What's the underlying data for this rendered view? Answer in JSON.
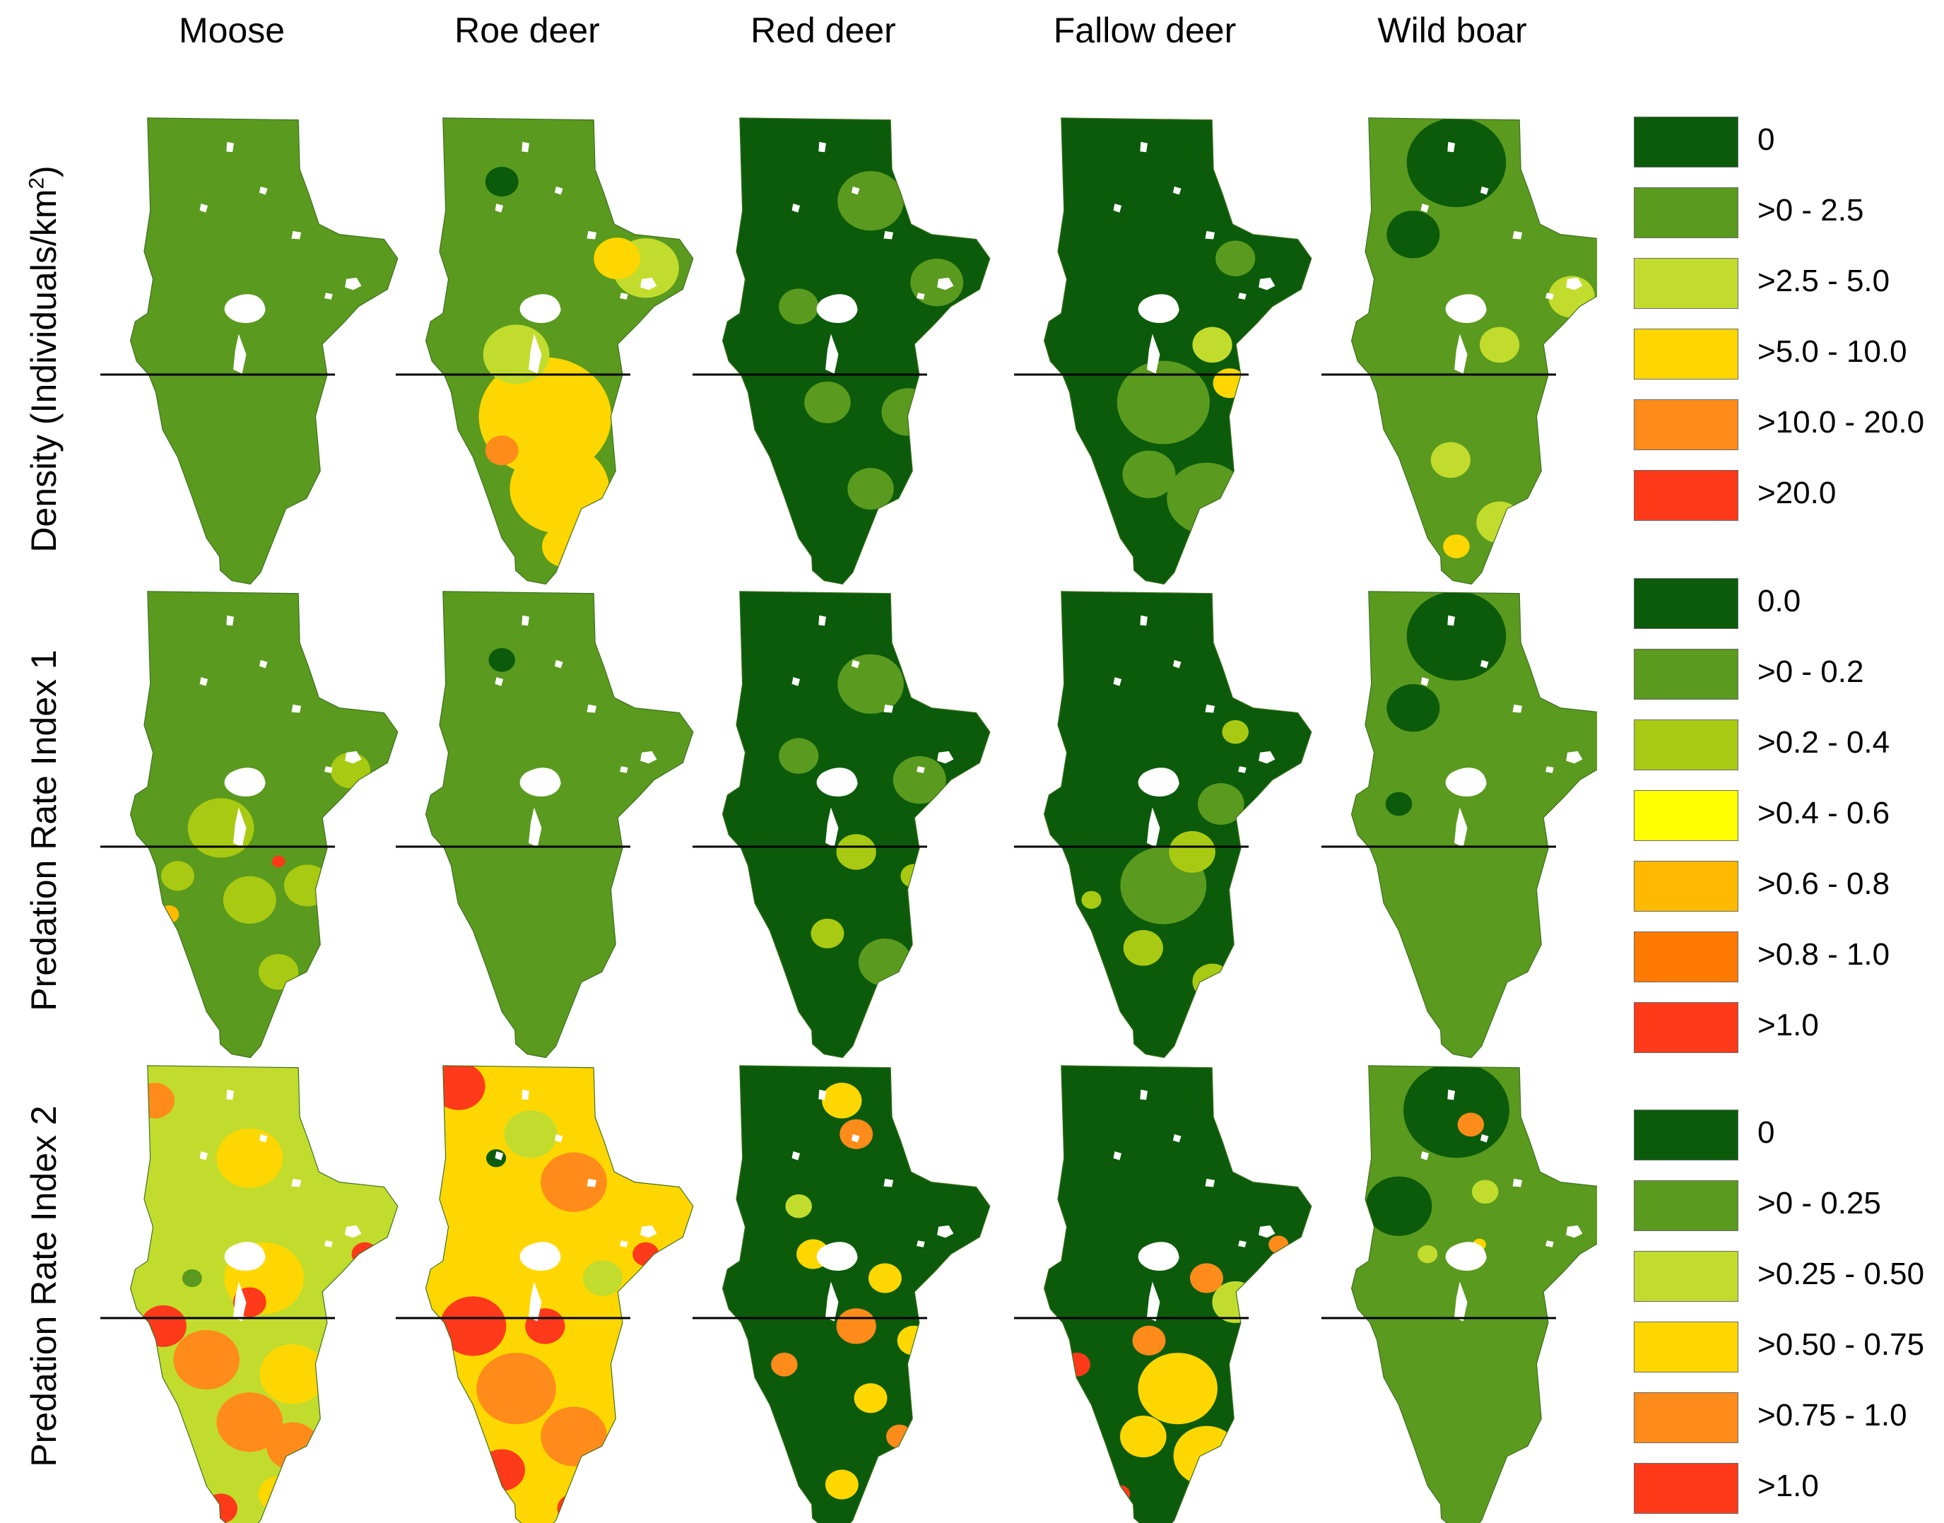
{
  "columns": [
    "Moose",
    "Roe deer",
    "Red deer",
    "Fallow deer",
    "Wild boar"
  ],
  "rows": [
    {
      "label_main": "Density (Individuals/km",
      "label_sup": "2",
      "label_tail": ")"
    },
    {
      "label_main": "Predation Rate Index 1",
      "label_sup": "",
      "label_tail": ""
    },
    {
      "label_main": "Predation Rate Index 2",
      "label_sup": "",
      "label_tail": ""
    }
  ],
  "colors": {
    "dark_green": "#0b5b0b",
    "mid_green": "#5a9a1e",
    "light_green": "#c2dc2e",
    "yellow_green": "#a9ca12",
    "yellow": "#ffd700",
    "bright_yellow": "#ffff00",
    "light_orange": "#ffba00",
    "orange": "#ff8c1a",
    "dark_orange": "#ff7a00",
    "red": "#ff3a1a"
  },
  "legends": [
    {
      "name": "density",
      "items": [
        {
          "label": "0",
          "color": "#0b5b0b"
        },
        {
          "label": ">0 - 2.5",
          "color": "#5a9a1e"
        },
        {
          "label": ">2.5 - 5.0",
          "color": "#c2dc2e"
        },
        {
          "label": ">5.0 - 10.0",
          "color": "#ffd700"
        },
        {
          "label": ">10.0 - 20.0",
          "color": "#ff8c1a"
        },
        {
          "label": ">20.0",
          "color": "#ff3a1a"
        }
      ]
    },
    {
      "name": "predation-index-1",
      "items": [
        {
          "label": "0.0",
          "color": "#0b5b0b"
        },
        {
          "label": ">0 - 0.2",
          "color": "#5a9a1e"
        },
        {
          "label": ">0.2 - 0.4",
          "color": "#a9ca12"
        },
        {
          "label": ">0.4 - 0.6",
          "color": "#ffff00"
        },
        {
          "label": ">0.6 - 0.8",
          "color": "#ffba00"
        },
        {
          "label": ">0.8 - 1.0",
          "color": "#ff7a00"
        },
        {
          "label": ">1.0",
          "color": "#ff3a1a"
        }
      ]
    },
    {
      "name": "predation-index-2",
      "items": [
        {
          "label": "0",
          "color": "#0b5b0b"
        },
        {
          "label": ">0 - 0.25",
          "color": "#5a9a1e"
        },
        {
          "label": ">0.25 - 0.50",
          "color": "#c2dc2e"
        },
        {
          "label": ">0.50 - 0.75",
          "color": "#ffd700"
        },
        {
          "label": ">0.75 - 1.0",
          "color": "#ff8c1a"
        },
        {
          "label": ">1.0",
          "color": "#ff3a1a"
        }
      ]
    }
  ],
  "maps": [
    [
      {
        "base": "mid_green",
        "blobs": [
          [
            "dark_green",
            0.72,
            0.95,
            0.04
          ]
        ]
      },
      {
        "base": "mid_green",
        "blobs": [
          [
            "yellow",
            0.45,
            0.63,
            0.2
          ],
          [
            "yellow",
            0.5,
            0.78,
            0.15
          ],
          [
            "light_green",
            0.35,
            0.5,
            0.1
          ],
          [
            "light_green",
            0.8,
            0.32,
            0.1
          ],
          [
            "yellow",
            0.7,
            0.3,
            0.07
          ],
          [
            "orange",
            0.3,
            0.7,
            0.05
          ],
          [
            "dark_green",
            0.3,
            0.14,
            0.05
          ],
          [
            "yellow",
            0.52,
            0.9,
            0.07
          ],
          [
            "orange",
            0.55,
            0.93,
            0.04
          ]
        ]
      },
      {
        "base": "dark_green",
        "blobs": [
          [
            "mid_green",
            0.55,
            0.18,
            0.1
          ],
          [
            "mid_green",
            0.78,
            0.35,
            0.08
          ],
          [
            "mid_green",
            0.4,
            0.6,
            0.07
          ],
          [
            "mid_green",
            0.68,
            0.62,
            0.08
          ],
          [
            "mid_green",
            0.55,
            0.78,
            0.07
          ],
          [
            "mid_green",
            0.3,
            0.4,
            0.06
          ],
          [
            "mid_green",
            0.72,
            0.9,
            0.05
          ]
        ]
      },
      {
        "base": "dark_green",
        "blobs": [
          [
            "mid_green",
            0.45,
            0.6,
            0.14
          ],
          [
            "mid_green",
            0.6,
            0.8,
            0.12
          ],
          [
            "mid_green",
            0.4,
            0.75,
            0.08
          ],
          [
            "light_green",
            0.62,
            0.48,
            0.06
          ],
          [
            "yellow",
            0.68,
            0.56,
            0.05
          ],
          [
            "red",
            0.8,
            0.46,
            0.03
          ],
          [
            "red",
            0.18,
            0.93,
            0.03
          ],
          [
            "light_green",
            0.3,
            0.93,
            0.04
          ],
          [
            "mid_green",
            0.7,
            0.3,
            0.06
          ]
        ]
      },
      {
        "base": "mid_green",
        "blobs": [
          [
            "dark_green",
            0.4,
            0.1,
            0.15
          ],
          [
            "dark_green",
            0.25,
            0.25,
            0.08
          ],
          [
            "light_green",
            0.8,
            0.38,
            0.07
          ],
          [
            "light_green",
            0.55,
            0.48,
            0.06
          ],
          [
            "light_green",
            0.38,
            0.72,
            0.06
          ],
          [
            "light_green",
            0.55,
            0.85,
            0.07
          ],
          [
            "yellow",
            0.4,
            0.9,
            0.04
          ],
          [
            "orange",
            0.7,
            0.94,
            0.03
          ],
          [
            "orange",
            0.9,
            0.4,
            0.02
          ]
        ]
      }
    ],
    [
      {
        "base": "mid_green",
        "blobs": [
          [
            "yellow_green",
            0.35,
            0.5,
            0.1
          ],
          [
            "yellow_green",
            0.45,
            0.65,
            0.08
          ],
          [
            "yellow_green",
            0.65,
            0.62,
            0.07
          ],
          [
            "yellow_green",
            0.8,
            0.38,
            0.06
          ],
          [
            "yellow_green",
            0.2,
            0.6,
            0.05
          ],
          [
            "light_orange",
            0.17,
            0.68,
            0.03
          ],
          [
            "red",
            0.55,
            0.57,
            0.02
          ],
          [
            "red",
            0.5,
            0.98,
            0.02
          ],
          [
            "yellow_green",
            0.55,
            0.8,
            0.06
          ]
        ]
      },
      {
        "base": "mid_green",
        "blobs": [
          [
            "dark_green",
            0.3,
            0.15,
            0.04
          ],
          [
            "red",
            0.52,
            0.98,
            0.02
          ]
        ]
      },
      {
        "base": "dark_green",
        "blobs": [
          [
            "mid_green",
            0.55,
            0.2,
            0.1
          ],
          [
            "mid_green",
            0.72,
            0.4,
            0.08
          ],
          [
            "yellow_green",
            0.5,
            0.55,
            0.06
          ],
          [
            "yellow_green",
            0.4,
            0.72,
            0.05
          ],
          [
            "mid_green",
            0.6,
            0.78,
            0.08
          ],
          [
            "mid_green",
            0.3,
            0.35,
            0.06
          ],
          [
            "yellow_green",
            0.7,
            0.6,
            0.04
          ]
        ]
      },
      {
        "base": "dark_green",
        "blobs": [
          [
            "mid_green",
            0.45,
            0.62,
            0.13
          ],
          [
            "yellow_green",
            0.55,
            0.55,
            0.07
          ],
          [
            "yellow_green",
            0.38,
            0.75,
            0.06
          ],
          [
            "yellow_green",
            0.62,
            0.82,
            0.06
          ],
          [
            "mid_green",
            0.65,
            0.45,
            0.07
          ],
          [
            "yellow_green",
            0.7,
            0.3,
            0.04
          ],
          [
            "yellow_green",
            0.2,
            0.65,
            0.03
          ]
        ]
      },
      {
        "base": "mid_green",
        "blobs": [
          [
            "dark_green",
            0.4,
            0.1,
            0.15
          ],
          [
            "dark_green",
            0.25,
            0.25,
            0.08
          ],
          [
            "dark_green",
            0.2,
            0.45,
            0.04
          ],
          [
            "red",
            0.52,
            0.98,
            0.02
          ]
        ]
      }
    ],
    [
      {
        "base": "light_green",
        "blobs": [
          [
            "yellow",
            0.45,
            0.2,
            0.1
          ],
          [
            "orange",
            0.12,
            0.08,
            0.06
          ],
          [
            "yellow",
            0.5,
            0.45,
            0.12
          ],
          [
            "red",
            0.15,
            0.55,
            0.07
          ],
          [
            "red",
            0.45,
            0.5,
            0.05
          ],
          [
            "orange",
            0.3,
            0.62,
            0.1
          ],
          [
            "orange",
            0.45,
            0.75,
            0.1
          ],
          [
            "yellow",
            0.6,
            0.65,
            0.1
          ],
          [
            "orange",
            0.6,
            0.8,
            0.08
          ],
          [
            "red",
            0.35,
            0.93,
            0.05
          ],
          [
            "yellow",
            0.55,
            0.9,
            0.06
          ],
          [
            "red",
            0.85,
            0.4,
            0.04
          ],
          [
            "mid_green",
            0.25,
            0.45,
            0.03
          ]
        ]
      },
      {
        "base": "yellow",
        "blobs": [
          [
            "red",
            0.15,
            0.05,
            0.08
          ],
          [
            "orange",
            0.55,
            0.25,
            0.1
          ],
          [
            "light_green",
            0.4,
            0.15,
            0.08
          ],
          [
            "red",
            0.2,
            0.55,
            0.1
          ],
          [
            "red",
            0.45,
            0.55,
            0.06
          ],
          [
            "orange",
            0.35,
            0.68,
            0.12
          ],
          [
            "orange",
            0.55,
            0.78,
            0.1
          ],
          [
            "red",
            0.3,
            0.85,
            0.07
          ],
          [
            "red",
            0.55,
            0.93,
            0.05
          ],
          [
            "light_green",
            0.65,
            0.45,
            0.06
          ],
          [
            "dark_green",
            0.28,
            0.2,
            0.03
          ],
          [
            "red",
            0.8,
            0.4,
            0.04
          ]
        ]
      },
      {
        "base": "dark_green",
        "blobs": [
          [
            "yellow",
            0.45,
            0.08,
            0.06
          ],
          [
            "orange",
            0.5,
            0.15,
            0.05
          ],
          [
            "yellow",
            0.35,
            0.4,
            0.05
          ],
          [
            "yellow",
            0.6,
            0.45,
            0.05
          ],
          [
            "orange",
            0.5,
            0.55,
            0.06
          ],
          [
            "yellow",
            0.7,
            0.58,
            0.05
          ],
          [
            "orange",
            0.25,
            0.63,
            0.04
          ],
          [
            "yellow",
            0.55,
            0.7,
            0.05
          ],
          [
            "orange",
            0.65,
            0.78,
            0.04
          ],
          [
            "yellow",
            0.45,
            0.88,
            0.05
          ],
          [
            "light_green",
            0.3,
            0.3,
            0.04
          ]
        ]
      },
      {
        "base": "dark_green",
        "blobs": [
          [
            "yellow",
            0.5,
            0.68,
            0.12
          ],
          [
            "yellow",
            0.6,
            0.82,
            0.1
          ],
          [
            "orange",
            0.4,
            0.58,
            0.05
          ],
          [
            "light_green",
            0.7,
            0.5,
            0.07
          ],
          [
            "orange",
            0.6,
            0.45,
            0.05
          ],
          [
            "red",
            0.15,
            0.63,
            0.04
          ],
          [
            "red",
            0.3,
            0.9,
            0.03
          ],
          [
            "yellow",
            0.38,
            0.78,
            0.07
          ],
          [
            "orange",
            0.85,
            0.38,
            0.03
          ]
        ]
      },
      {
        "base": "mid_green",
        "blobs": [
          [
            "dark_green",
            0.4,
            0.1,
            0.16
          ],
          [
            "dark_green",
            0.2,
            0.3,
            0.1
          ],
          [
            "orange",
            0.45,
            0.13,
            0.04
          ],
          [
            "light_green",
            0.5,
            0.27,
            0.04
          ],
          [
            "light_green",
            0.3,
            0.4,
            0.03
          ],
          [
            "yellow",
            0.48,
            0.38,
            0.02
          ]
        ]
      }
    ]
  ]
}
